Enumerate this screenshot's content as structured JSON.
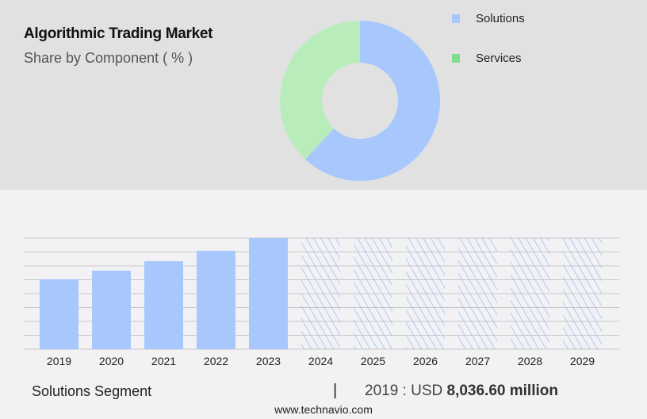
{
  "header": {
    "title": "Algorithmic Trading Market",
    "subtitle": "Share by Component ( % )"
  },
  "chart_data": [
    {
      "type": "pie",
      "donut": true,
      "labels": [
        "Solutions",
        "Services"
      ],
      "values": [
        62,
        38
      ],
      "colors": [
        "#a8c8fd",
        "#b8edbb"
      ],
      "legend_colors": [
        "#a8c8fd",
        "#7ee08e"
      ],
      "legend": "right"
    },
    {
      "type": "bar",
      "categories": [
        "2019",
        "2020",
        "2021",
        "2022",
        "2023",
        "2024",
        "2025",
        "2026",
        "2027",
        "2028",
        "2029"
      ],
      "values": [
        8036.6,
        9040,
        10130,
        11320,
        12790,
        null,
        null,
        null,
        null,
        null,
        null
      ],
      "forecast_hatched": [
        "2024",
        "2025",
        "2026",
        "2027",
        "2028",
        "2029"
      ],
      "color": "#a8c8fd",
      "grid": true,
      "ylim": [
        0,
        12790
      ]
    }
  ],
  "footer": {
    "segment": "Solutions Segment",
    "separator": "|",
    "value_prefix": "2019 : USD ",
    "value": "8,036.60 million",
    "site": "www.technavio.com"
  }
}
